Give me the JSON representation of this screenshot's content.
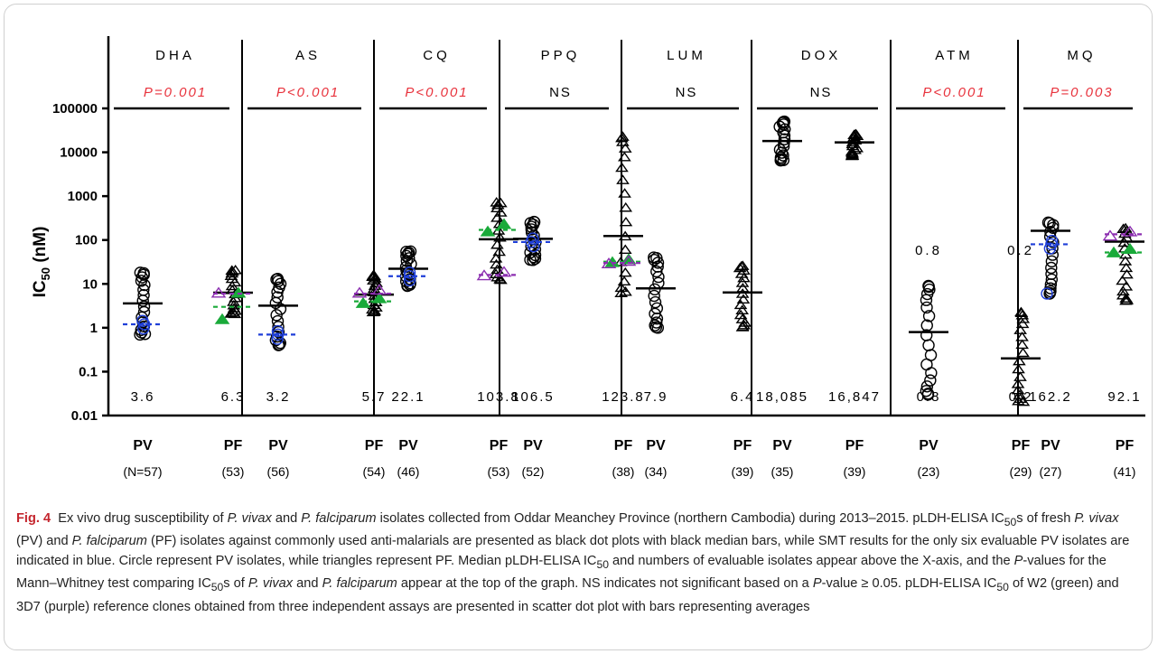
{
  "chart_data": {
    "type": "scatter",
    "y_axis": {
      "label": "IC50 (nM)",
      "scale": "log",
      "range": [
        0.01,
        100000
      ],
      "tick_labels": [
        "0.01",
        "0.1",
        "1",
        "10",
        "100",
        "1000",
        "10000",
        "100000"
      ],
      "tick_values": [
        0.01,
        0.1,
        1,
        10,
        100,
        1000,
        10000,
        100000
      ]
    },
    "panels": [
      {
        "drug": "DHA",
        "pvalue": "P=0.001",
        "significant": true,
        "groups": [
          {
            "label": "PV",
            "n_label": "(N=57)",
            "median_label": "3.6",
            "median": 3.6,
            "range": [
              0.7,
              18
            ],
            "smt_median": 1.2,
            "color": "#1f3fd8"
          },
          {
            "label": "PF",
            "n_label": "(53)",
            "median_label": "6.3",
            "median": 6.3,
            "range": [
              2,
              20
            ],
            "w2": [
              1.5,
              6
            ],
            "d37": [
              6
            ],
            "w2_mean": 3,
            "d37_mean": 6
          }
        ]
      },
      {
        "drug": "AS",
        "pvalue": "P<0.001",
        "significant": true,
        "groups": [
          {
            "label": "PV",
            "n_label": "(56)",
            "median_label": "3.2",
            "median": 3.2,
            "range": [
              0.4,
              13
            ],
            "smt_median": 0.7
          },
          {
            "label": "PF",
            "n_label": "(54)",
            "median_label": "5.7",
            "median": 5.7,
            "range": [
              2.2,
              15
            ],
            "w2": [
              3.5,
              4.5
            ],
            "d37": [
              6,
              7
            ],
            "w2_mean": 4,
            "d37_mean": 6
          }
        ]
      },
      {
        "drug": "CQ",
        "pvalue": "P<0.001",
        "significant": true,
        "groups": [
          {
            "label": "PV",
            "n_label": "(46)",
            "median_label": "22.1",
            "median": 22.1,
            "range": [
              9,
              55
            ],
            "smt_median": 15
          },
          {
            "label": "PF",
            "n_label": "(53)",
            "median_label": "103.8",
            "median": 103.8,
            "range": [
              12,
              700
            ],
            "w2": [
              150,
              220
            ],
            "d37": [
              15,
              18
            ],
            "w2_mean": 170,
            "d37_mean": 16
          }
        ]
      },
      {
        "drug": "PPQ",
        "pvalue": "NS",
        "significant": false,
        "groups": [
          {
            "label": "PV",
            "n_label": "(52)",
            "median_label": "106.5",
            "median": 106.5,
            "range": [
              35,
              260
            ],
            "smt_median": 90
          },
          {
            "label": "PF",
            "n_label": "(38)",
            "median_label": "123.8",
            "median": 123.8,
            "range": [
              6,
              22000
            ],
            "w2": [
              30,
              35
            ],
            "d37": [
              28,
              32
            ],
            "w2_mean": 32,
            "d37_mean": 30
          }
        ]
      },
      {
        "drug": "LUM",
        "pvalue": "NS",
        "significant": false,
        "groups": [
          {
            "label": "PV",
            "n_label": "(34)",
            "median_label": "7.9",
            "median": 7.9,
            "range": [
              1,
              40
            ]
          },
          {
            "label": "PF",
            "n_label": "(39)",
            "median_label": "6.4",
            "median": 6.4,
            "range": [
              1,
              25
            ]
          }
        ]
      },
      {
        "drug": "DOX",
        "pvalue": "NS",
        "significant": false,
        "groups": [
          {
            "label": "PV",
            "n_label": "(35)",
            "median_label": "18,085",
            "median": 18085,
            "range": [
              6500,
              50000
            ]
          },
          {
            "label": "PF",
            "n_label": "(39)",
            "median_label": "16,847",
            "median": 16847,
            "range": [
              8000,
              25000
            ]
          }
        ]
      },
      {
        "drug": "ATM",
        "pvalue": "P<0.001",
        "significant": true,
        "groups": [
          {
            "label": "PV",
            "n_label": "(23)",
            "median_label": "0.8",
            "median": 0.8,
            "range": [
              0.03,
              9
            ],
            "annotation": "0.8"
          },
          {
            "label": "PF",
            "n_label": "(29)",
            "median_label": "0.2",
            "median": 0.2,
            "range": [
              0.02,
              2.2
            ],
            "annotation": "0.2"
          }
        ]
      },
      {
        "drug": "MQ",
        "pvalue": "P=0.003",
        "significant": true,
        "groups": [
          {
            "label": "PV",
            "n_label": "(27)",
            "median_label": "162.2",
            "median": 162.2,
            "range": [
              6,
              250
            ],
            "smt_median": 80
          },
          {
            "label": "PF",
            "n_label": "(41)",
            "median_label": "92.1",
            "median": 92.1,
            "range": [
              4,
              180
            ],
            "w2": [
              50,
              60
            ],
            "d37": [
              120,
              150
            ],
            "w2_mean": 52,
            "d37_mean": 135
          }
        ]
      }
    ],
    "colors": {
      "significant_text": "#e8323c",
      "smt_blue": "#1f3fd8",
      "w2_green": "#1aaa3a",
      "d37_purple": "#8c2fb0",
      "black": "#000000"
    },
    "marker_shapes": {
      "PV": "circle",
      "PF": "triangle"
    }
  },
  "caption": {
    "fig_label": "Fig. 4",
    "parts": [
      "Ex vivo drug susceptibility of ",
      "P. vivax",
      " and ",
      "P. falciparum",
      " isolates collected from Oddar Meanchey Province (northern Cambodia) during 2013–2015. pLDH-ELISA IC",
      "50",
      "s of fresh ",
      "P. vivax",
      " (PV) and ",
      "P. falciparum",
      " (PF) isolates against commonly used anti-malarials are presented as black dot plots with black median bars, while SMT results for the only six evaluable PV isolates are indicated in blue. Circle represent PV isolates, while triangles represent PF. Median pLDH-ELISA IC",
      "50",
      " and numbers of evaluable isolates appear above the X-axis, and the ",
      "P",
      "-values for the Mann–Whitney test comparing IC",
      "50",
      "s of ",
      "P. vivax",
      " and ",
      "P. falciparum",
      " appear at the top of the graph. NS indicates not significant based on a ",
      "P",
      "-value ≥ 0.05. pLDH-ELISA IC",
      "50",
      " of W2 (green) and 3D7 (purple) reference clones obtained from three independent assays are presented in scatter dot plot with bars representing averages"
    ]
  }
}
